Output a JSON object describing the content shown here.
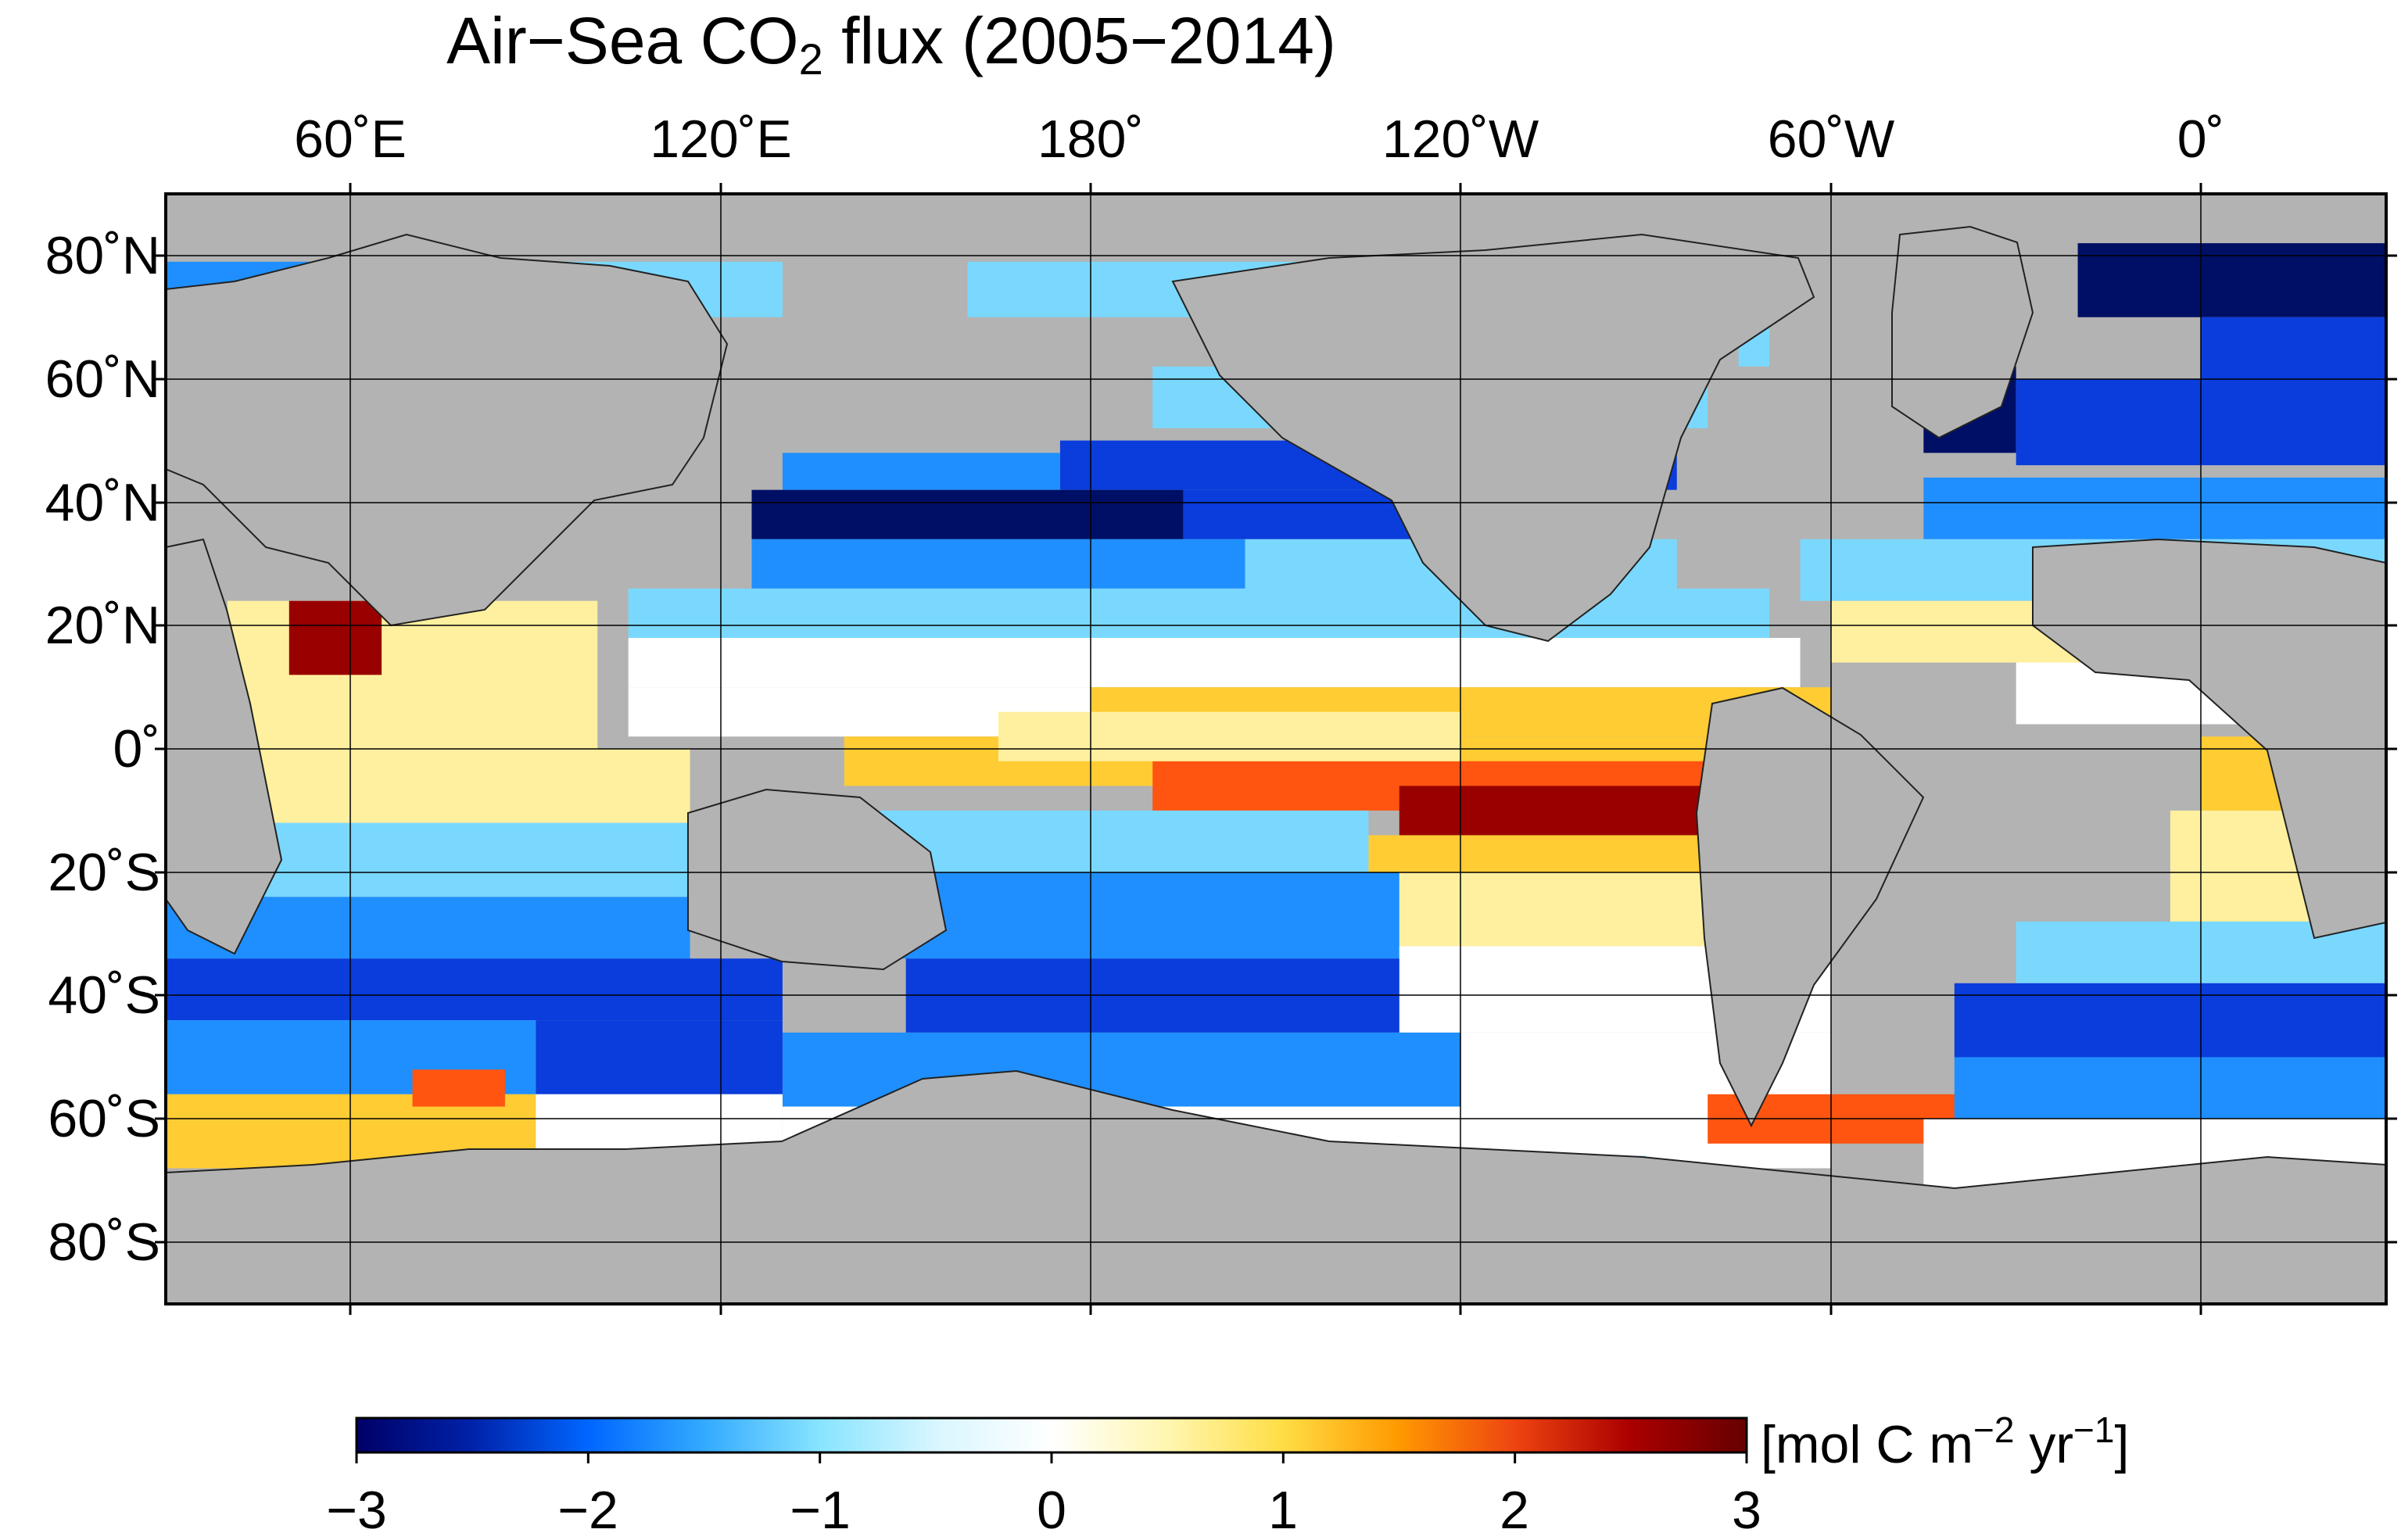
{
  "title": {
    "main": "Air−Sea CO",
    "subscript": "2",
    "tail": " flux (2005−2014)"
  },
  "map": {
    "projection": "equirectangular",
    "central_longitude": "150°W",
    "lat_range": [
      -90,
      90
    ],
    "grid": true,
    "land_color": "#b3b3b3",
    "frame_color": "#000000",
    "longitude_labels": [
      "60˚E",
      "120˚E",
      "180˚",
      "120˚W",
      "60˚W",
      "0˚"
    ],
    "latitude_labels": [
      "80˚N",
      "60˚N",
      "40˚N",
      "20˚N",
      "0˚",
      "20˚S",
      "40˚S",
      "60˚S",
      "80˚S"
    ]
  },
  "colorbar": {
    "ticks": [
      "−3",
      "−2",
      "−1",
      "0",
      "1",
      "2",
      "3"
    ],
    "range": [
      -3,
      3
    ],
    "units_main": "[mol C m",
    "units_sup1": "−2",
    "units_mid": " yr",
    "units_sup2": "−1",
    "units_end": "]",
    "colors": [
      "#000066",
      "#0022aa",
      "#0066ff",
      "#33aaff",
      "#88e4ff",
      "#d8f6ff",
      "#ffffff",
      "#fff6b0",
      "#ffdd44",
      "#ff9900",
      "#ee4411",
      "#aa0000",
      "#660000"
    ]
  },
  "palette": {
    "strong_uptake": "#000f66",
    "uptake": "#0a3ddc",
    "moderate_uptake": "#1f8fff",
    "weak_uptake": "#7ad8ff",
    "neutral": "#ffffff",
    "weak_outgassing": "#fff0a0",
    "outgassing": "#ffcc33",
    "strong_outgassing": "#ff5511",
    "very_strong_outgassing": "#990000"
  }
}
